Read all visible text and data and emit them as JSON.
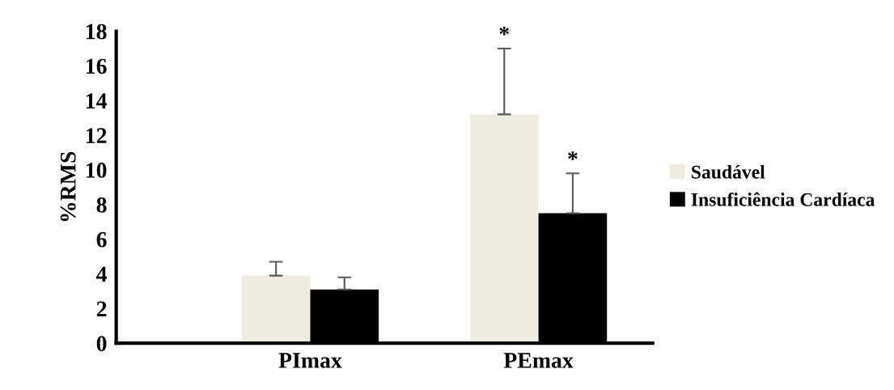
{
  "chart_data": {
    "type": "bar",
    "ylabel": "%RMS",
    "categories": [
      "PImax",
      "PEmax"
    ],
    "series": [
      {
        "name": "Saudável",
        "color": "#eeebe0",
        "values": [
          3.9,
          13.2
        ],
        "errors": [
          [
            3.9,
            4.7
          ],
          [
            13.2,
            17.0
          ]
        ]
      },
      {
        "name": "Insuficiência Cardíaca",
        "color": "#000000",
        "values": [
          3.1,
          7.5
        ],
        "errors": [
          [
            3.1,
            3.8
          ],
          [
            7.5,
            9.8
          ]
        ]
      }
    ],
    "ylim": [
      0,
      18
    ],
    "yticks": [
      0,
      2,
      4,
      6,
      8,
      10,
      12,
      14,
      16,
      18
    ],
    "grid": false,
    "legend": "right",
    "annotations": [
      "*",
      "*"
    ]
  }
}
